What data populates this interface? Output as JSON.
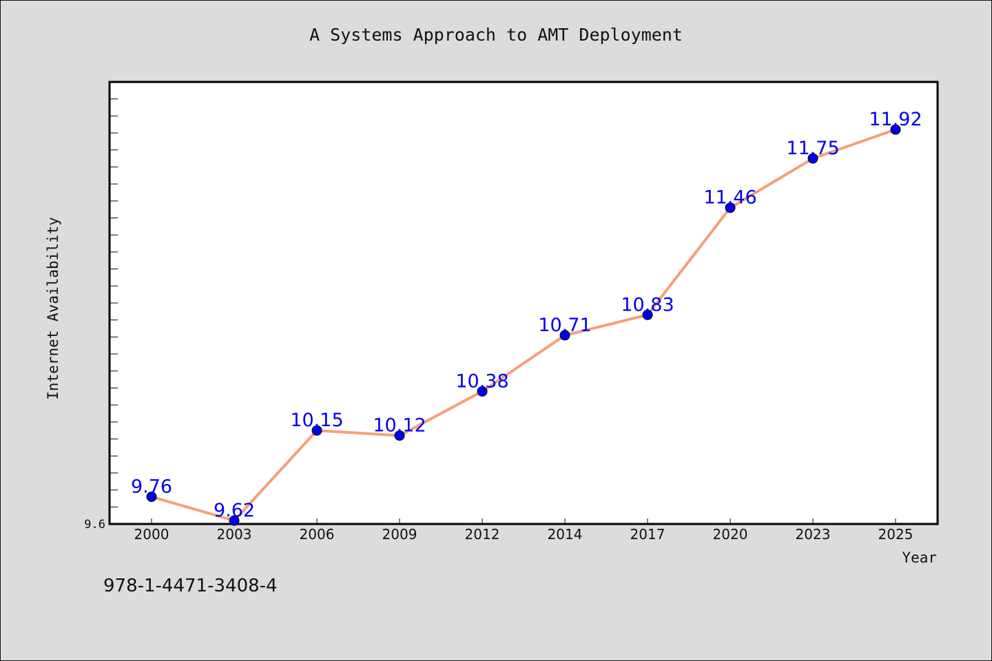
{
  "chart_data": {
    "type": "line",
    "title": "A Systems Approach to AMT Deployment",
    "xlabel": "Year",
    "ylabel": "Internet Availability",
    "categories": [
      "2000",
      "2003",
      "2006",
      "2009",
      "2012",
      "2014",
      "2017",
      "2020",
      "2023",
      "2025"
    ],
    "series": [
      {
        "values": [
          9.76,
          9.62,
          10.15,
          10.12,
          10.38,
          10.71,
          10.83,
          11.46,
          11.75,
          11.92
        ],
        "labels": [
          "9.76",
          "9.62",
          "10.15",
          "10.12",
          "10.38",
          "10.71",
          "10.83",
          "11.46",
          "11.75",
          "11.92"
        ],
        "line_color": "#f4a07a",
        "marker_color": "#0000ee",
        "label_color": "#0000ee"
      }
    ],
    "ylim": [
      9.6,
      12.2
    ],
    "y_tick_label": "9.6",
    "y_minor_step": 0.1,
    "grid": false,
    "legend": "none"
  },
  "footer": {
    "isbn": "978-1-4471-3408-4"
  },
  "colors": {
    "background": "#dcdcdc",
    "plot_background": "#ffffff",
    "axis": "#000000"
  }
}
